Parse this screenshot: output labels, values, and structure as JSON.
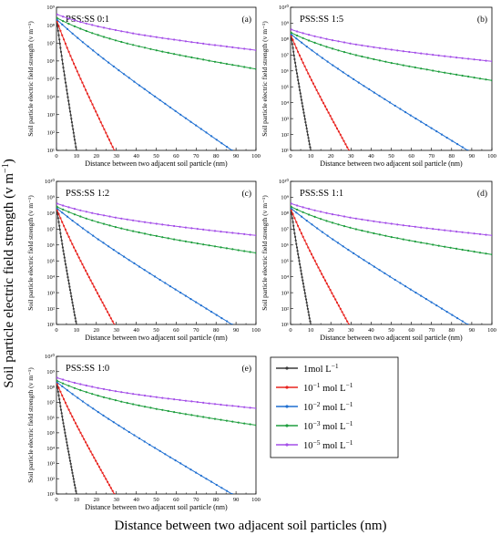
{
  "figure": {
    "super_ylabel": "Soil particle electric field strength (v m",
    "super_ylabel_sup": "−1",
    "super_ylabel_close": ")",
    "super_xlabel": "Distance between two adjacent soil particles (nm)"
  },
  "legend": [
    {
      "base": "1mol L",
      "sup": "−1",
      "color": "#3a3a3a"
    },
    {
      "base": "10",
      "exp": "−1",
      "mid": " mol L",
      "sup": "−1",
      "color": "#e8231f"
    },
    {
      "base": "10",
      "exp": "−2",
      "mid": " mol L",
      "sup": "−1",
      "color": "#1f6fd1"
    },
    {
      "base": "10",
      "exp": "−3",
      "mid": " mol L",
      "sup": "−1",
      "color": "#1e9e3e"
    },
    {
      "base": "10",
      "exp": "−5",
      "mid": " mol L",
      "sup": "−1",
      "color": "#a44fe8"
    }
  ],
  "chart_data": [
    {
      "type": "line",
      "panel": "(a)",
      "title": "PSS:SS 0:1",
      "xlabel": "Distance between two adjacent soil particle (nm)",
      "ylabel": "Soil particle electric field strength (v m⁻¹)",
      "xlim": [
        0,
        100
      ],
      "ylim_log10": [
        1,
        9
      ],
      "yscale": "log",
      "xticks": [
        "0",
        "10",
        "20",
        "30",
        "40",
        "50",
        "60",
        "70",
        "80",
        "90",
        "100"
      ],
      "yticks": [
        "10¹",
        "10²",
        "10³",
        "10⁴",
        "10⁵",
        "10⁶",
        "10⁷",
        "10⁸",
        "10⁹"
      ],
      "series": [
        {
          "name": "1mol L⁻¹",
          "color": "#3a3a3a",
          "x_end": 10,
          "y_log10_at_0": 8.2
        },
        {
          "name": "10⁻¹ mol L⁻¹",
          "color": "#e8231f",
          "x_end": 29,
          "y_log10_at_0": 8.2
        },
        {
          "name": "10⁻² mol L⁻¹",
          "color": "#1f6fd1",
          "x_end": 88,
          "y_log10_at_0": 8.3
        },
        {
          "name": "10⁻³ mol L⁻¹",
          "color": "#1e9e3e",
          "x_end": 100,
          "y_log10_at_0": 8.4,
          "y_log10_at_end": 5.55
        },
        {
          "name": "10⁻⁵ mol L⁻¹",
          "color": "#a44fe8",
          "x_end": 100,
          "y_log10_at_0": 8.6,
          "y_log10_at_end": 6.6
        }
      ]
    },
    {
      "type": "line",
      "panel": "(b)",
      "title": "PSS:SS 1:5",
      "xlabel": "Distance between two adjacent soil particle (nm)",
      "ylabel": "Soil particle electric field strength (v m⁻¹)",
      "xlim": [
        0,
        100
      ],
      "ylim_log10": [
        1,
        10
      ],
      "yscale": "log",
      "xticks": [
        "0",
        "10",
        "20",
        "30",
        "40",
        "50",
        "60",
        "70",
        "80",
        "90",
        "100"
      ],
      "yticks": [
        "10¹",
        "10²",
        "10³",
        "10⁴",
        "10⁵",
        "10⁶",
        "10⁷",
        "10⁸",
        "10⁹",
        "10¹⁰"
      ],
      "series": [
        {
          "name": "1mol L⁻¹",
          "color": "#3a3a3a",
          "x_end": 10,
          "y_log10_at_0": 8.2
        },
        {
          "name": "10⁻¹ mol L⁻¹",
          "color": "#e8231f",
          "x_end": 29,
          "y_log10_at_0": 8.2
        },
        {
          "name": "10⁻² mol L⁻¹",
          "color": "#1f6fd1",
          "x_end": 88,
          "y_log10_at_0": 8.3
        },
        {
          "name": "10⁻³ mol L⁻¹",
          "color": "#1e9e3e",
          "x_end": 100,
          "y_log10_at_0": 8.4,
          "y_log10_at_end": 5.4
        },
        {
          "name": "10⁻⁵ mol L⁻¹",
          "color": "#a44fe8",
          "x_end": 100,
          "y_log10_at_0": 8.6,
          "y_log10_at_end": 6.6
        }
      ]
    },
    {
      "type": "line",
      "panel": "(c)",
      "title": "PSS:SS 1:2",
      "xlabel": "Distance between two adjacent soil particle (nm)",
      "ylabel": "Soil particle electric field strength (v m⁻¹)",
      "xlim": [
        0,
        100
      ],
      "ylim_log10": [
        1,
        10
      ],
      "yscale": "log",
      "xticks": [
        "0",
        "10",
        "20",
        "30",
        "40",
        "50",
        "60",
        "70",
        "80",
        "90",
        "100"
      ],
      "yticks": [
        "10¹",
        "10²",
        "10³",
        "10⁴",
        "10⁵",
        "10⁶",
        "10⁷",
        "10⁸",
        "10⁹",
        "10¹⁰"
      ],
      "series": [
        {
          "name": "1mol L⁻¹",
          "color": "#3a3a3a",
          "x_end": 10,
          "y_log10_at_0": 8.2
        },
        {
          "name": "10⁻¹ mol L⁻¹",
          "color": "#e8231f",
          "x_end": 29,
          "y_log10_at_0": 8.2
        },
        {
          "name": "10⁻² mol L⁻¹",
          "color": "#1f6fd1",
          "x_end": 88,
          "y_log10_at_0": 8.3
        },
        {
          "name": "10⁻³ mol L⁻¹",
          "color": "#1e9e3e",
          "x_end": 100,
          "y_log10_at_0": 8.4,
          "y_log10_at_end": 5.5
        },
        {
          "name": "10⁻⁵ mol L⁻¹",
          "color": "#a44fe8",
          "x_end": 100,
          "y_log10_at_0": 8.6,
          "y_log10_at_end": 6.6
        }
      ]
    },
    {
      "type": "line",
      "panel": "(d)",
      "title": "PSS:SS 1:1",
      "xlabel": "Distance between two adjacent soil particle (nm)",
      "ylabel": "Soil particle electric field strength (v m⁻¹)",
      "xlim": [
        0,
        100
      ],
      "ylim_log10": [
        1,
        10
      ],
      "yscale": "log",
      "xticks": [
        "0",
        "10",
        "20",
        "30",
        "40",
        "50",
        "60",
        "70",
        "80",
        "90",
        "100"
      ],
      "yticks": [
        "10¹",
        "10²",
        "10³",
        "10⁴",
        "10⁵",
        "10⁶",
        "10⁷",
        "10⁸",
        "10⁹",
        "10¹⁰"
      ],
      "series": [
        {
          "name": "1mol L⁻¹",
          "color": "#3a3a3a",
          "x_end": 10,
          "y_log10_at_0": 8.2
        },
        {
          "name": "10⁻¹ mol L⁻¹",
          "color": "#e8231f",
          "x_end": 29,
          "y_log10_at_0": 8.2
        },
        {
          "name": "10⁻² mol L⁻¹",
          "color": "#1f6fd1",
          "x_end": 88,
          "y_log10_at_0": 8.3
        },
        {
          "name": "10⁻³ mol L⁻¹",
          "color": "#1e9e3e",
          "x_end": 100,
          "y_log10_at_0": 8.4,
          "y_log10_at_end": 5.4
        },
        {
          "name": "10⁻⁵ mol L⁻¹",
          "color": "#a44fe8",
          "x_end": 100,
          "y_log10_at_0": 8.6,
          "y_log10_at_end": 6.6
        }
      ]
    },
    {
      "type": "line",
      "panel": "(e)",
      "title": "PSS:SS 1:0",
      "xlabel": "Distance between two adjacent soil particle (nm)",
      "ylabel": "Soil particle electric field strength (v m⁻¹)",
      "xlim": [
        0,
        100
      ],
      "ylim_log10": [
        1,
        10
      ],
      "yscale": "log",
      "xticks": [
        "0",
        "10",
        "20",
        "30",
        "40",
        "50",
        "60",
        "70",
        "80",
        "90",
        "100"
      ],
      "yticks": [
        "10¹",
        "10²",
        "10³",
        "10⁴",
        "10⁵",
        "10⁶",
        "10⁷",
        "10⁸",
        "10⁹",
        "10¹⁰"
      ],
      "series": [
        {
          "name": "1mol L⁻¹",
          "color": "#3a3a3a",
          "x_end": 10,
          "y_log10_at_0": 8.2
        },
        {
          "name": "10⁻¹ mol L⁻¹",
          "color": "#e8231f",
          "x_end": 29,
          "y_log10_at_0": 8.2
        },
        {
          "name": "10⁻² mol L⁻¹",
          "color": "#1f6fd1",
          "x_end": 88,
          "y_log10_at_0": 8.3
        },
        {
          "name": "10⁻³ mol L⁻¹",
          "color": "#1e9e3e",
          "x_end": 100,
          "y_log10_at_0": 8.4,
          "y_log10_at_end": 5.5
        },
        {
          "name": "10⁻⁵ mol L⁻¹",
          "color": "#a44fe8",
          "x_end": 100,
          "y_log10_at_0": 8.6,
          "y_log10_at_end": 6.6
        }
      ]
    }
  ]
}
